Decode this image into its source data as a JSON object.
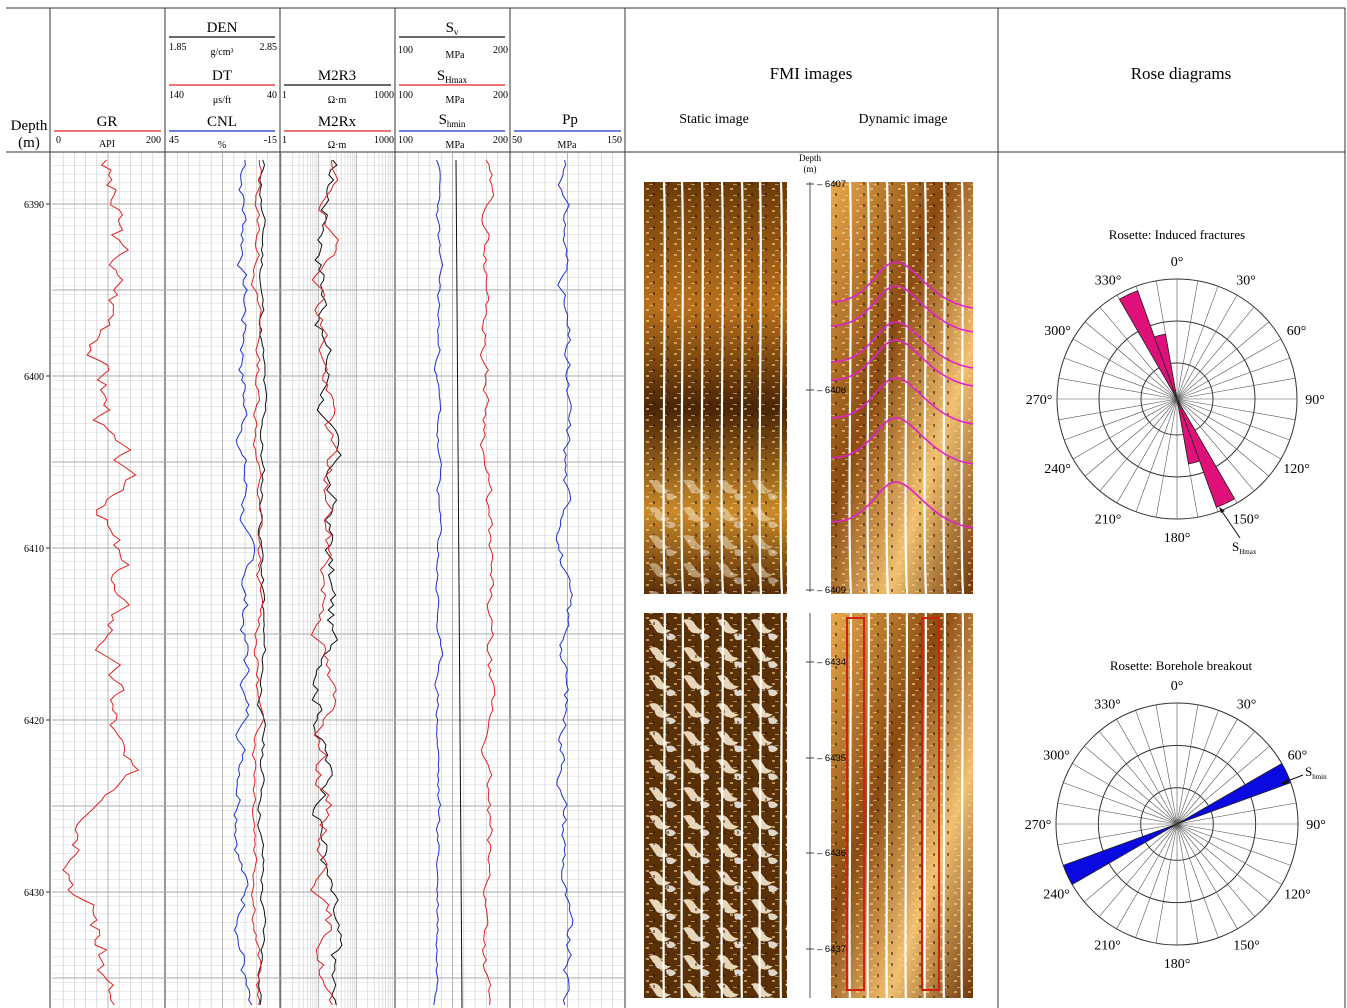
{
  "depth_header": {
    "label": "Depth",
    "unit": "(m)"
  },
  "tracks": {
    "gr": {
      "name": "GR",
      "min": "0",
      "max": "200",
      "unit": "API",
      "color": "#e02020"
    },
    "den": {
      "name": "DEN",
      "min": "1.85",
      "max": "2.85",
      "unit": "g/cm³",
      "color": "#111111"
    },
    "dt": {
      "name": "DT",
      "min": "140",
      "max": "40",
      "unit": "μs/ft",
      "color": "#e02020"
    },
    "cnl": {
      "name": "CNL",
      "min": "45",
      "max": "-15",
      "unit": "%",
      "color": "#2030d0"
    },
    "m2r3": {
      "name": "M2R3",
      "min": "1",
      "max": "1000",
      "unit": "Ω·m",
      "color": "#111111"
    },
    "m2rx": {
      "name": "M2Rx",
      "min": "1",
      "max": "1000",
      "unit": "Ω·m",
      "color": "#e02020"
    },
    "sv": {
      "name": "S",
      "sub": "v",
      "min": "100",
      "max": "200",
      "unit": "MPa",
      "color": "#111111"
    },
    "shmax": {
      "name": "S",
      "sub": "Hmax",
      "min": "100",
      "max": "200",
      "unit": "MPa",
      "color": "#e02020"
    },
    "shmin": {
      "name": "S",
      "sub": "hmin",
      "min": "100",
      "max": "200",
      "unit": "MPa",
      "color": "#2030d0"
    },
    "pp": {
      "name": "Pp",
      "min": "50",
      "max": "150",
      "unit": "MPa",
      "color": "#2030d0"
    }
  },
  "depth_ticks": [
    "6390",
    "6400",
    "6410",
    "6420",
    "6430"
  ],
  "fmi": {
    "title": "FMI images",
    "static_label": "Static image",
    "dynamic_label": "Dynamic image",
    "depth_label": "Depth",
    "depth_unit": "(m)",
    "upper_ticks": [
      "6407",
      "6408",
      "6409"
    ],
    "lower_ticks": [
      "6434",
      "6435",
      "6436",
      "6437"
    ],
    "fracture_color": "#e020d0",
    "breakout_color": "#d02010"
  },
  "rose": {
    "title": "Rose diagrams",
    "angle_labels": [
      "0°",
      "30°",
      "60°",
      "90°",
      "120°",
      "150°",
      "180°",
      "210°",
      "240°",
      "270°",
      "300°",
      "330°"
    ],
    "induced": {
      "title": "Rosette: Induced fractures",
      "color": "#e0107a",
      "annotation": "S",
      "annotation_sub": "Hmax"
    },
    "breakout": {
      "title": "Rosette: Borehole breakout",
      "color": "#0a0ae0",
      "annotation": "S",
      "annotation_sub": "hmin"
    }
  }
}
